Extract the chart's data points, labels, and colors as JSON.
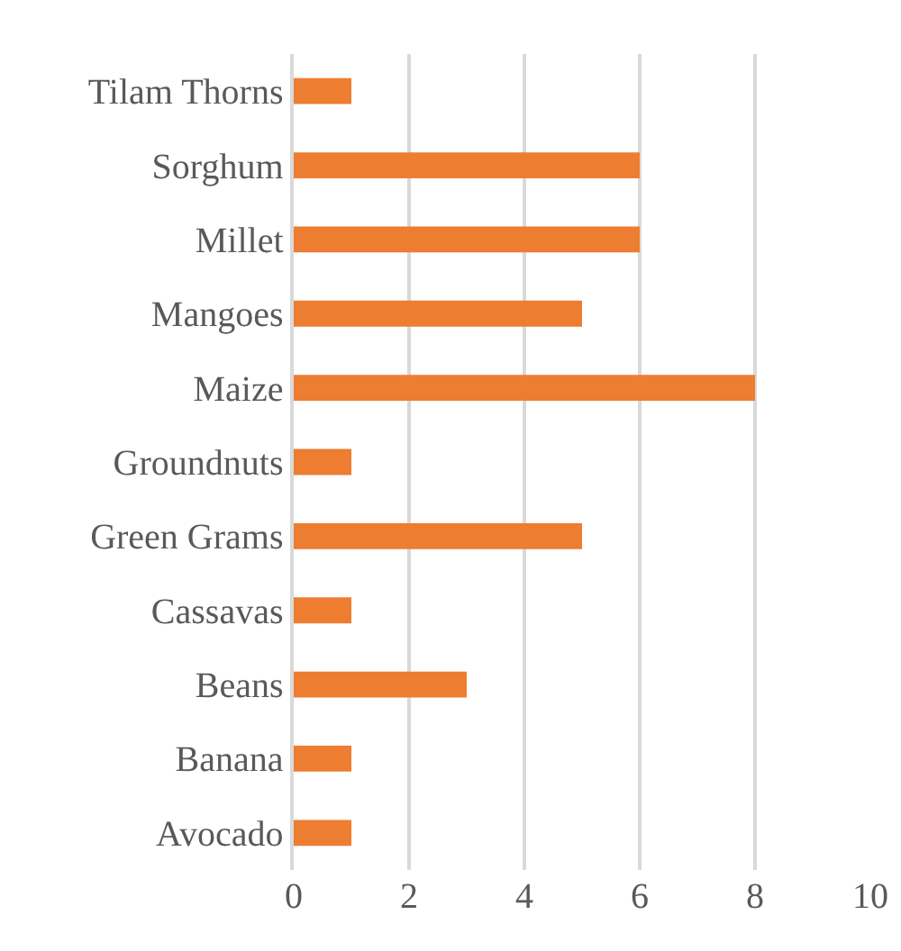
{
  "chart_data": {
    "type": "bar",
    "orientation": "horizontal",
    "categories": [
      "Tilam Thorns",
      "Sorghum",
      "Millet",
      "Mangoes",
      "Maize",
      "Groundnuts",
      "Green Grams",
      "Cassavas",
      "Beans",
      "Banana",
      "Avocado"
    ],
    "values": [
      1,
      6,
      6,
      5,
      8,
      1,
      5,
      1,
      3,
      1,
      1
    ],
    "color": "#ed7d31",
    "xlim": [
      0,
      10
    ],
    "xticks": [
      0,
      2,
      4,
      6,
      8,
      10
    ],
    "grid": "x",
    "legend": false
  }
}
